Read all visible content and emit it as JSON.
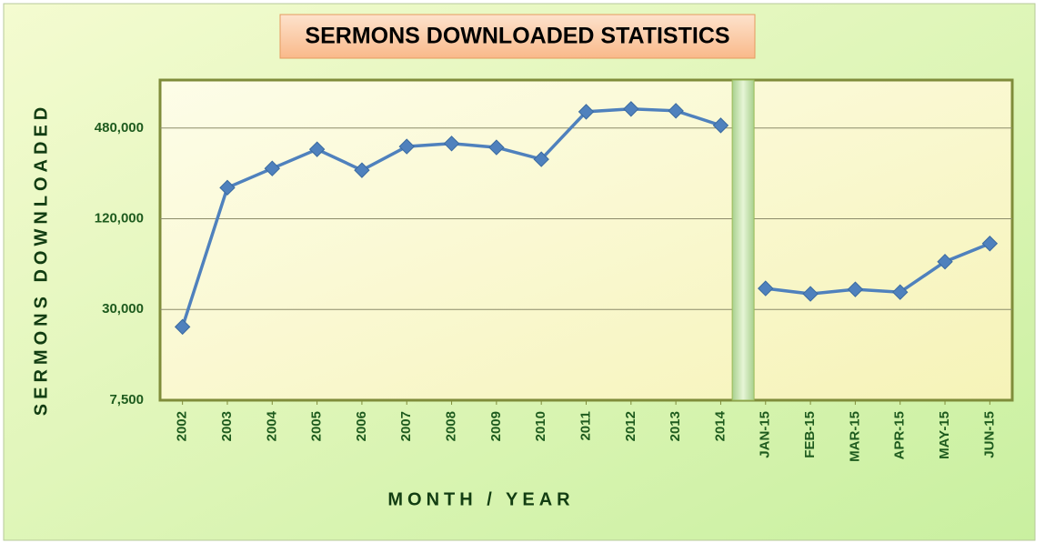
{
  "chart_data": {
    "type": "line",
    "title": "SERMONS DOWNLOADED STATISTICS",
    "x_label": "MONTH / YEAR",
    "y_label": "SERMONS DOWNLOADED",
    "categories": [
      "2002",
      "2003",
      "2004",
      "2005",
      "2006",
      "2007",
      "2008",
      "2009",
      "2010",
      "2011",
      "2012",
      "2013",
      "2014",
      "JAN-15",
      "FEB-15",
      "MAR-15",
      "APR-15",
      "MAY-15",
      "JUN-15"
    ],
    "series": [
      {
        "name": "Sermons Downloaded",
        "color": "#4f81bd",
        "values": [
          23000,
          193000,
          259000,
          347000,
          252000,
          362000,
          379000,
          357000,
          298000,
          616000,
          643000,
          625000,
          500000,
          41400,
          38100,
          40800,
          39100,
          62300,
          82200
        ]
      }
    ],
    "log_scale": true,
    "log_base": 4,
    "ylim": [
      7500,
      1000000
    ],
    "yticks": [
      {
        "value": 7500,
        "label": "7,500"
      },
      {
        "value": 30000,
        "label": "30,000"
      },
      {
        "value": 120000,
        "label": "120,000"
      },
      {
        "value": 480000,
        "label": "480,000"
      }
    ],
    "grid": true
  }
}
